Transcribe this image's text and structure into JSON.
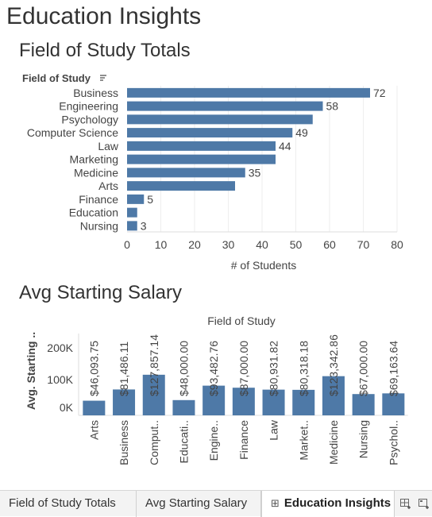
{
  "dashboard": {
    "title": "Education Insights"
  },
  "sort_icon": "sort-descending-icon",
  "colors": {
    "bar": "#4e79a7",
    "text": "#444444",
    "grid": "#eeeeee"
  },
  "chart_data": [
    {
      "type": "bar",
      "orientation": "horizontal",
      "title": "Field of Study Totals",
      "category_header": "Field of Study",
      "categories": [
        "Business",
        "Engineering",
        "Psychology",
        "Computer Science",
        "Law",
        "Marketing",
        "Medicine",
        "Arts",
        "Finance",
        "Education",
        "Nursing"
      ],
      "values": [
        72,
        58,
        55,
        49,
        44,
        44,
        35,
        32,
        5,
        3,
        3
      ],
      "data_labels": [
        "72",
        "58",
        "",
        "49",
        "44",
        "",
        "35",
        "",
        "5",
        "",
        "3"
      ],
      "xlabel": "# of Students",
      "xlim": [
        0,
        80
      ],
      "xticks": [
        "0",
        "10",
        "20",
        "30",
        "40",
        "50",
        "60",
        "70",
        "80"
      ]
    },
    {
      "type": "bar",
      "orientation": "vertical",
      "title": "Avg Starting Salary",
      "category_header": "Field of Study",
      "categories": [
        "Arts",
        "Business",
        "Comput..",
        "Educati..",
        "Engine..",
        "Finance",
        "Law",
        "Market..",
        "Medicine",
        "Nursing",
        "Psychol.."
      ],
      "values": [
        46093.75,
        81486.11,
        127857.14,
        48000.0,
        93482.76,
        87000.0,
        80931.82,
        80318.18,
        123342.86,
        67000.0,
        69163.64
      ],
      "data_labels": [
        "$46,093.75",
        "$81,486.11",
        "$127,857.14",
        "$48,000.00",
        "$93,482.76",
        "$87,000.00",
        "$80,931.82",
        "$80,318.18",
        "$123,342.86",
        "$67,000.00",
        "$69,163.64"
      ],
      "ylabel": "Avg. Starting ..",
      "ylim": [
        0,
        260000
      ],
      "yticks": [
        "0K",
        "100K",
        "200K"
      ]
    }
  ],
  "tabs": [
    {
      "label": "Field of Study Totals",
      "active": false
    },
    {
      "label": "Avg Starting Salary",
      "active": false
    },
    {
      "label": "Education Insights",
      "active": true
    }
  ],
  "tab_icons": {
    "new_dashboard": "new-dashboard-icon",
    "new_story": "new-story-icon"
  }
}
